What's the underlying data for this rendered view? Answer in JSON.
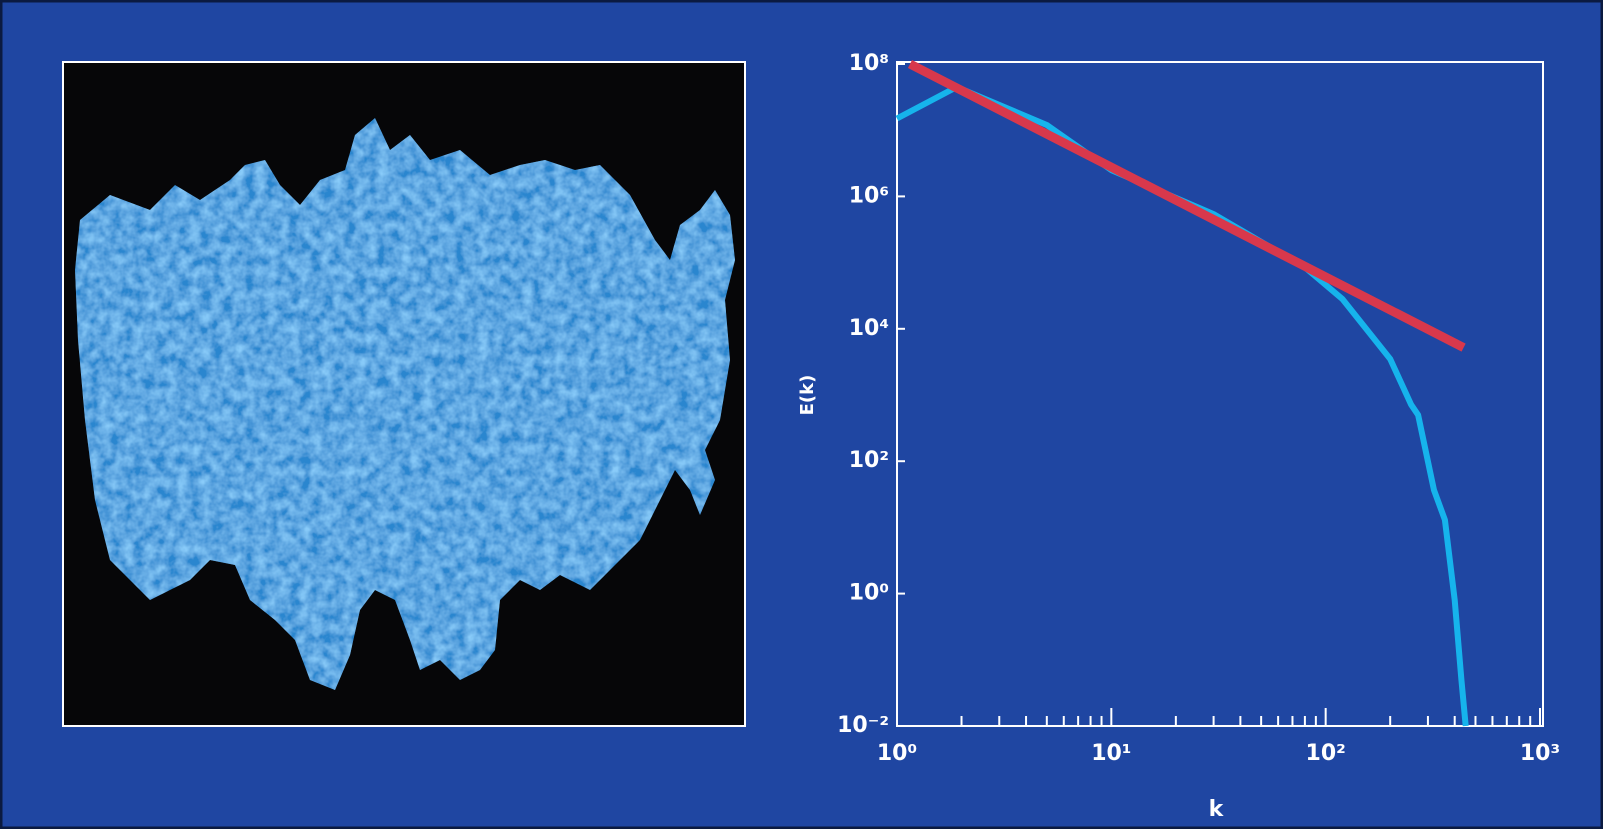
{
  "chart_data": {
    "type": "line",
    "xlabel": "k",
    "ylabel": "E(k)",
    "xscale": "log",
    "yscale": "log",
    "xlim": [
      1,
      1000
    ],
    "ylim": [
      0.01,
      100000000
    ],
    "xticks": [
      {
        "value": 1,
        "label": "10⁰"
      },
      {
        "value": 10,
        "label": "10¹"
      },
      {
        "value": 100,
        "label": "10²"
      },
      {
        "value": 1000,
        "label": "10³"
      }
    ],
    "xminorticks": [
      2,
      3,
      4,
      5,
      6,
      7,
      8,
      9,
      20,
      30,
      40,
      50,
      60,
      70,
      80,
      90,
      200,
      300,
      400,
      500,
      600,
      700,
      800,
      900
    ],
    "yticks": [
      {
        "value": 0.01,
        "label": "10⁻²"
      },
      {
        "value": 1,
        "label": "10⁰"
      },
      {
        "value": 100,
        "label": "10²"
      },
      {
        "value": 10000,
        "label": "10⁴"
      },
      {
        "value": 1000000,
        "label": "10⁶"
      },
      {
        "value": 100000000,
        "label": "10⁸"
      }
    ],
    "series": [
      {
        "color": "#16b4ec",
        "x": [
          1,
          1.9,
          5,
          10,
          30,
          80,
          120,
          200,
          250,
          270,
          320,
          360,
          400,
          430,
          450
        ],
        "values": [
          15000000,
          45000000,
          12000000,
          2500000,
          540000,
          85000,
          28000,
          3500,
          720,
          500,
          37,
          13,
          0.8,
          0.05,
          0.01
        ]
      },
      {
        "color": "#d8384c",
        "x": [
          1.15,
          440
        ],
        "values": [
          100000000,
          5200
        ]
      }
    ]
  }
}
